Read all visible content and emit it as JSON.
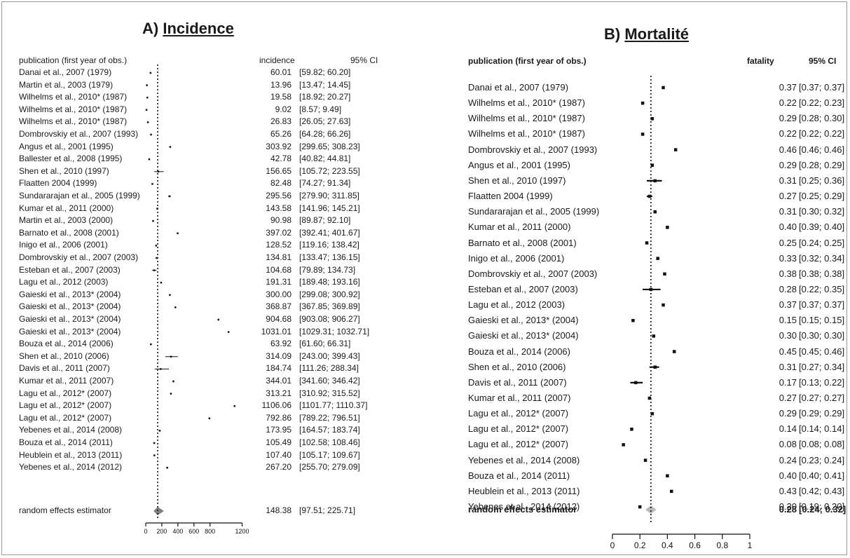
{
  "chart_data": [
    {
      "type": "forest",
      "panel_title_prefix": "A) ",
      "panel_title_word": "Incidence",
      "col_study": "publication (first year of obs.)",
      "col_estimate": "incidence",
      "col_ci": "95% CI",
      "xlim": [
        0,
        1300
      ],
      "ref_line": 148.38,
      "ticks": [
        0,
        200,
        400,
        600,
        800,
        1200
      ],
      "tick_labels": [
        "0",
        "200",
        "400",
        "600",
        "800",
        "1200"
      ],
      "rows": [
        {
          "study": "Danai et al., 2007 (1979)",
          "est": 60.01,
          "lo": 59.82,
          "hi": 60.2,
          "est_text": "60.01",
          "ci_text": "[59.82;  60.20]"
        },
        {
          "study": "Martin et al., 2003 (1979)",
          "est": 13.96,
          "lo": 13.47,
          "hi": 14.45,
          "est_text": "13.96",
          "ci_text": "[13.47;  14.45]"
        },
        {
          "study": "Wilhelms et al., 2010* (1987)",
          "est": 19.58,
          "lo": 18.92,
          "hi": 20.27,
          "est_text": "19.58",
          "ci_text": "[18.92;  20.27]"
        },
        {
          "study": "Wilhelms et al., 2010* (1987)",
          "est": 9.02,
          "lo": 8.57,
          "hi": 9.49,
          "est_text": "9.02",
          "ci_text": "[8.57;   9.49]"
        },
        {
          "study": "Wilhelms et al., 2010* (1987)",
          "est": 26.83,
          "lo": 26.05,
          "hi": 27.63,
          "est_text": "26.83",
          "ci_text": "[26.05;  27.63]"
        },
        {
          "study": "Dombrovskiy et al., 2007 (1993)",
          "est": 65.26,
          "lo": 64.28,
          "hi": 66.26,
          "est_text": "65.26",
          "ci_text": "[64.28;  66.26]"
        },
        {
          "study": "Angus et al., 2001 (1995)",
          "est": 303.92,
          "lo": 299.65,
          "hi": 308.23,
          "est_text": "303.92",
          "ci_text": "[299.65; 308.23]"
        },
        {
          "study": "Ballester et al., 2008 (1995)",
          "est": 42.78,
          "lo": 40.82,
          "hi": 44.81,
          "est_text": "42.78",
          "ci_text": "[40.82;  44.81]"
        },
        {
          "study": "Shen et al., 2010 (1997)",
          "est": 156.65,
          "lo": 105.72,
          "hi": 223.55,
          "est_text": "156.65",
          "ci_text": "[105.72; 223.55]"
        },
        {
          "study": "Flaatten 2004 (1999)",
          "est": 82.48,
          "lo": 74.27,
          "hi": 91.34,
          "est_text": "82.48",
          "ci_text": "[74.27;  91.34]"
        },
        {
          "study": "Sundararajan et al., 2005 (1999)",
          "est": 295.56,
          "lo": 279.9,
          "hi": 311.85,
          "est_text": "295.56",
          "ci_text": "[279.90; 311.85]"
        },
        {
          "study": "Kumar et al., 2011 (2000)",
          "est": 143.58,
          "lo": 141.96,
          "hi": 145.21,
          "est_text": "143.58",
          "ci_text": "[141.96; 145.21]"
        },
        {
          "study": "Martin et al., 2003 (2000)",
          "est": 90.98,
          "lo": 89.87,
          "hi": 92.1,
          "est_text": "90.98",
          "ci_text": "[89.87;  92.10]"
        },
        {
          "study": "Barnato et al., 2008 (2001)",
          "est": 397.02,
          "lo": 392.41,
          "hi": 401.67,
          "est_text": "397.02",
          "ci_text": "[392.41; 401.67]"
        },
        {
          "study": "Inigo et al., 2006 (2001)",
          "est": 128.52,
          "lo": 119.16,
          "hi": 138.42,
          "est_text": "128.52",
          "ci_text": "[119.16; 138.42]"
        },
        {
          "study": "Dombrovskiy et al., 2007 (2003)",
          "est": 134.81,
          "lo": 133.47,
          "hi": 136.15,
          "est_text": "134.81",
          "ci_text": "[133.47; 136.15]"
        },
        {
          "study": "Esteban et al., 2007 (2003)",
          "est": 104.68,
          "lo": 79.89,
          "hi": 134.73,
          "est_text": "104.68",
          "ci_text": "[79.89; 134.73]"
        },
        {
          "study": "Lagu et al., 2012 (2003)",
          "est": 191.31,
          "lo": 189.48,
          "hi": 193.16,
          "est_text": "191.31",
          "ci_text": "[189.48; 193.16]"
        },
        {
          "study": "Gaieski et al., 2013* (2004)",
          "est": 300.0,
          "lo": 299.08,
          "hi": 300.92,
          "est_text": "300.00",
          "ci_text": "[299.08; 300.92]"
        },
        {
          "study": "Gaieski et al., 2013* (2004)",
          "est": 368.87,
          "lo": 367.85,
          "hi": 369.89,
          "est_text": "368.87",
          "ci_text": "[367.85; 369.89]"
        },
        {
          "study": "Gaieski et al., 2013* (2004)",
          "est": 904.68,
          "lo": 903.08,
          "hi": 906.27,
          "est_text": "904.68",
          "ci_text": "[903.08; 906.27]"
        },
        {
          "study": "Gaieski et al., 2013* (2004)",
          "est": 1031.01,
          "lo": 1029.31,
          "hi": 1032.71,
          "est_text": "1031.01",
          "ci_text": "[1029.31; 1032.71]"
        },
        {
          "study": "Bouza et al., 2014 (2006)",
          "est": 63.92,
          "lo": 61.6,
          "hi": 66.31,
          "est_text": "63.92",
          "ci_text": "[61.60;  66.31]"
        },
        {
          "study": "Shen et al., 2010 (2006)",
          "est": 314.09,
          "lo": 243.0,
          "hi": 399.43,
          "est_text": "314.09",
          "ci_text": "[243.00; 399.43]"
        },
        {
          "study": "Davis et al., 2011 (2007)",
          "est": 184.74,
          "lo": 111.26,
          "hi": 288.34,
          "est_text": "184.74",
          "ci_text": "[111.26; 288.34]"
        },
        {
          "study": "Kumar et al., 2011 (2007)",
          "est": 344.01,
          "lo": 341.6,
          "hi": 346.42,
          "est_text": "344.01",
          "ci_text": "[341.60; 346.42]"
        },
        {
          "study": "Lagu et al., 2012* (2007)",
          "est": 313.21,
          "lo": 310.92,
          "hi": 315.52,
          "est_text": "313.21",
          "ci_text": "[310.92; 315.52]"
        },
        {
          "study": "Lagu et al., 2012* (2007)",
          "est": 1106.06,
          "lo": 1101.77,
          "hi": 1110.37,
          "est_text": "1106.06",
          "ci_text": "[1101.77; 1110.37]"
        },
        {
          "study": "Lagu et al., 2012* (2007)",
          "est": 792.86,
          "lo": 789.22,
          "hi": 796.51,
          "est_text": "792.86",
          "ci_text": "[789.22; 796.51]"
        },
        {
          "study": "Yebenes et al., 2014 (2008)",
          "est": 173.95,
          "lo": 164.57,
          "hi": 183.74,
          "est_text": "173.95",
          "ci_text": "[164.57; 183.74]"
        },
        {
          "study": "Bouza et al., 2014 (2011)",
          "est": 105.49,
          "lo": 102.58,
          "hi": 108.46,
          "est_text": "105.49",
          "ci_text": "[102.58; 108.46]"
        },
        {
          "study": "Heublein et al., 2013 (2011)",
          "est": 107.4,
          "lo": 105.17,
          "hi": 109.67,
          "est_text": "107.40",
          "ci_text": "[105.17; 109.67]"
        },
        {
          "study": "Yebenes et al., 2014 (2012)",
          "est": 267.2,
          "lo": 255.7,
          "hi": 279.09,
          "est_text": "267.20",
          "ci_text": "[255.70; 279.09]"
        }
      ],
      "summary": {
        "study": "random effects estimator",
        "est": 148.38,
        "lo": 97.51,
        "hi": 225.71,
        "est_text": "148.38",
        "ci_text": "[97.51; 225.71]"
      }
    },
    {
      "type": "forest",
      "panel_title_prefix": "B) ",
      "panel_title_word": "Mortalité",
      "col_study": "publication (first year of obs.)",
      "col_estimate": "fatality",
      "col_ci": "95% CI",
      "xlim": [
        0,
        1
      ],
      "ref_line": 0.28,
      "ticks": [
        0,
        0.2,
        0.4,
        0.6,
        0.8,
        1
      ],
      "tick_labels": [
        "0",
        "0.2",
        "0.4",
        "0.6",
        "0.8",
        "1"
      ],
      "rows": [
        {
          "study": "Danai et al., 2007 (1979)",
          "est": 0.37,
          "lo": 0.37,
          "hi": 0.37,
          "est_text": "0.37",
          "ci_text": "[0.37; 0.37]"
        },
        {
          "study": "Wilhelms et al., 2010* (1987)",
          "est": 0.22,
          "lo": 0.22,
          "hi": 0.23,
          "est_text": "0.22",
          "ci_text": "[0.22; 0.23]"
        },
        {
          "study": "Wilhelms et al., 2010* (1987)",
          "est": 0.29,
          "lo": 0.28,
          "hi": 0.3,
          "est_text": "0.29",
          "ci_text": "[0.28; 0.30]"
        },
        {
          "study": "Wilhelms et al., 2010* (1987)",
          "est": 0.22,
          "lo": 0.22,
          "hi": 0.22,
          "est_text": "0.22",
          "ci_text": "[0.22; 0.22]"
        },
        {
          "study": "Dombrovskiy et al., 2007 (1993)",
          "est": 0.46,
          "lo": 0.46,
          "hi": 0.46,
          "est_text": "0.46",
          "ci_text": "[0.46; 0.46]"
        },
        {
          "study": "Angus et al., 2001 (1995)",
          "est": 0.29,
          "lo": 0.28,
          "hi": 0.29,
          "est_text": "0.29",
          "ci_text": "[0.28; 0.29]"
        },
        {
          "study": "Shen et al., 2010 (1997)",
          "est": 0.31,
          "lo": 0.25,
          "hi": 0.36,
          "est_text": "0.31",
          "ci_text": "[0.25; 0.36]"
        },
        {
          "study": "Flaatten 2004 (1999)",
          "est": 0.27,
          "lo": 0.25,
          "hi": 0.29,
          "est_text": "0.27",
          "ci_text": "[0.25; 0.29]"
        },
        {
          "study": "Sundararajan et al., 2005 (1999)",
          "est": 0.31,
          "lo": 0.3,
          "hi": 0.32,
          "est_text": "0.31",
          "ci_text": "[0.30; 0.32]"
        },
        {
          "study": "Kumar et al., 2011 (2000)",
          "est": 0.4,
          "lo": 0.39,
          "hi": 0.4,
          "est_text": "0.40",
          "ci_text": "[0.39; 0.40]"
        },
        {
          "study": "Barnato et al., 2008 (2001)",
          "est": 0.25,
          "lo": 0.24,
          "hi": 0.25,
          "est_text": "0.25",
          "ci_text": "[0.24; 0.25]"
        },
        {
          "study": "Inigo et al., 2006 (2001)",
          "est": 0.33,
          "lo": 0.32,
          "hi": 0.34,
          "est_text": "0.33",
          "ci_text": "[0.32; 0.34]"
        },
        {
          "study": "Dombrovskiy et al., 2007 (2003)",
          "est": 0.38,
          "lo": 0.38,
          "hi": 0.38,
          "est_text": "0.38",
          "ci_text": "[0.38; 0.38]"
        },
        {
          "study": "Esteban et al., 2007 (2003)",
          "est": 0.28,
          "lo": 0.22,
          "hi": 0.35,
          "est_text": "0.28",
          "ci_text": "[0.22; 0.35]"
        },
        {
          "study": "Lagu et al., 2012 (2003)",
          "est": 0.37,
          "lo": 0.37,
          "hi": 0.37,
          "est_text": "0.37",
          "ci_text": "[0.37; 0.37]"
        },
        {
          "study": "Gaieski et al., 2013* (2004)",
          "est": 0.15,
          "lo": 0.15,
          "hi": 0.15,
          "est_text": "0.15",
          "ci_text": "[0.15; 0.15]"
        },
        {
          "study": "Gaieski et al., 2013* (2004)",
          "est": 0.3,
          "lo": 0.3,
          "hi": 0.3,
          "est_text": "0.30",
          "ci_text": "[0.30; 0.30]"
        },
        {
          "study": "Bouza et al., 2014 (2006)",
          "est": 0.45,
          "lo": 0.45,
          "hi": 0.46,
          "est_text": "0.45",
          "ci_text": "[0.45; 0.46]"
        },
        {
          "study": "Shen et al., 2010 (2006)",
          "est": 0.31,
          "lo": 0.27,
          "hi": 0.34,
          "est_text": "0.31",
          "ci_text": "[0.27; 0.34]"
        },
        {
          "study": "Davis et al., 2011 (2007)",
          "est": 0.17,
          "lo": 0.13,
          "hi": 0.22,
          "est_text": "0.17",
          "ci_text": "[0.13; 0.22]"
        },
        {
          "study": "Kumar et al., 2011 (2007)",
          "est": 0.27,
          "lo": 0.27,
          "hi": 0.27,
          "est_text": "0.27",
          "ci_text": "[0.27; 0.27]"
        },
        {
          "study": "Lagu et al., 2012* (2007)",
          "est": 0.29,
          "lo": 0.29,
          "hi": 0.29,
          "est_text": "0.29",
          "ci_text": "[0.29; 0.29]"
        },
        {
          "study": "Lagu et al., 2012* (2007)",
          "est": 0.14,
          "lo": 0.14,
          "hi": 0.14,
          "est_text": "0.14",
          "ci_text": "[0.14; 0.14]"
        },
        {
          "study": "Lagu et al., 2012* (2007)",
          "est": 0.08,
          "lo": 0.08,
          "hi": 0.08,
          "est_text": "0.08",
          "ci_text": "[0.08; 0.08]"
        },
        {
          "study": "Yebenes et al., 2014 (2008)",
          "est": 0.24,
          "lo": 0.23,
          "hi": 0.24,
          "est_text": "0.24",
          "ci_text": "[0.23; 0.24]"
        },
        {
          "study": "Bouza et al., 2014 (2011)",
          "est": 0.4,
          "lo": 0.4,
          "hi": 0.41,
          "est_text": "0.40",
          "ci_text": "[0.40; 0.41]"
        },
        {
          "study": "Heublein et al., 2013 (2011)",
          "est": 0.43,
          "lo": 0.42,
          "hi": 0.43,
          "est_text": "0.43",
          "ci_text": "[0.42; 0.43]"
        },
        {
          "study": "Yebenes et al., 2014 (2012)",
          "est": 0.2,
          "lo": 0.19,
          "hi": 0.2,
          "est_text": "0.20",
          "ci_text": "[0.19; 0.20]"
        }
      ],
      "summary": {
        "study": "random effects estimator",
        "est": 0.28,
        "lo": 0.24,
        "hi": 0.32,
        "est_text": "0.28",
        "ci_text": "[0.24; 0.32]"
      }
    }
  ]
}
